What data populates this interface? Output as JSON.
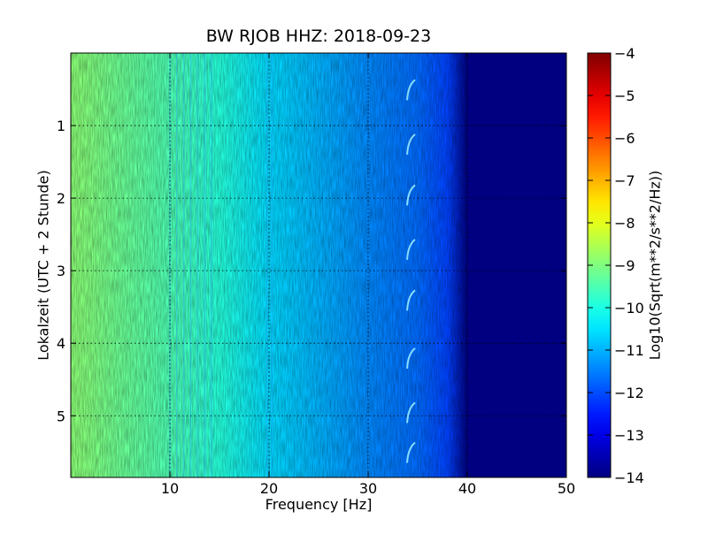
{
  "chart_data": {
    "type": "heatmap",
    "title": "BW RJOB HHZ: 2018-09-23",
    "xlabel": "Frequency [Hz]",
    "ylabel": "Lokalzeit (UTC + 2 Stunde)",
    "xlim": [
      0,
      50
    ],
    "ylim": [
      5.85,
      0
    ],
    "x_ticks": [
      10,
      20,
      30,
      40,
      50
    ],
    "y_ticks": [
      1,
      2,
      3,
      4,
      5
    ],
    "grid": true,
    "colormap": "jet",
    "colorbar": {
      "label": "Log10(Sqrt(m**2/s**2/Hz))",
      "range": [
        -14,
        -4
      ],
      "ticks": [
        -4,
        -5,
        -6,
        -7,
        -8,
        -9,
        -10,
        -11,
        -12,
        -13,
        -14
      ]
    },
    "spectrum_profile": {
      "frequency_hz": [
        0,
        2,
        5,
        10,
        15,
        20,
        25,
        30,
        35,
        38,
        40,
        41,
        50
      ],
      "value": [
        -8.9,
        -9.0,
        -9.2,
        -9.5,
        -9.9,
        -10.6,
        -11.0,
        -11.4,
        -11.7,
        -12.1,
        -14.0,
        -14.0,
        -14.0
      ]
    },
    "features": {
      "narrowband_lines_hz": [
        10,
        10.7,
        11.4,
        12.1,
        12.8,
        13.5,
        14.2,
        19.8,
        20.3
      ],
      "tone_frequency_hz": 34.2,
      "tone_arc_times_h": [
        0.65,
        1.4,
        2.1,
        2.85,
        3.55,
        4.35,
        5.1,
        5.65
      ]
    }
  }
}
